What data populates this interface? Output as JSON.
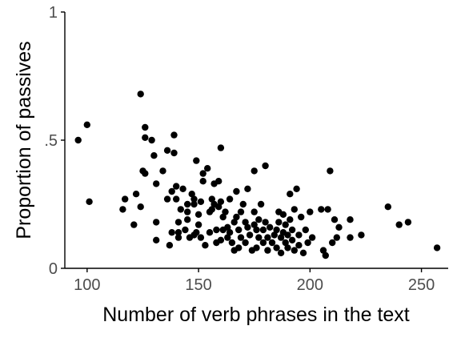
{
  "chart_data": {
    "type": "scatter",
    "title": "",
    "xlabel": "Number of verb phrases in the text",
    "ylabel": "Proportion of passives",
    "xlim": [
      90,
      262
    ],
    "ylim": [
      0,
      1
    ],
    "x_ticks": [
      {
        "value": 100,
        "label": "100"
      },
      {
        "value": 150,
        "label": "150"
      },
      {
        "value": 200,
        "label": "200"
      },
      {
        "value": 250,
        "label": "250"
      }
    ],
    "y_ticks": [
      {
        "value": 0,
        "label": "0"
      },
      {
        "value": 0.5,
        "label": ".5"
      },
      {
        "value": 1,
        "label": "1"
      }
    ],
    "grid": false,
    "legend": "none",
    "point_color": "#000000",
    "points": [
      [
        96,
        0.5
      ],
      [
        100,
        0.56
      ],
      [
        101,
        0.26
      ],
      [
        116,
        0.23
      ],
      [
        117,
        0.27
      ],
      [
        121,
        0.17
      ],
      [
        122,
        0.29
      ],
      [
        124,
        0.68
      ],
      [
        124,
        0.24
      ],
      [
        125,
        0.38
      ],
      [
        126,
        0.55
      ],
      [
        126,
        0.37
      ],
      [
        126,
        0.51
      ],
      [
        129,
        0.5
      ],
      [
        130,
        0.44
      ],
      [
        131,
        0.18
      ],
      [
        131,
        0.11
      ],
      [
        131,
        0.33
      ],
      [
        134,
        0.38
      ],
      [
        136,
        0.46
      ],
      [
        136,
        0.27
      ],
      [
        137,
        0.09
      ],
      [
        138,
        0.14
      ],
      [
        138,
        0.3
      ],
      [
        139,
        0.52
      ],
      [
        139,
        0.45
      ],
      [
        140,
        0.32
      ],
      [
        140,
        0.27
      ],
      [
        141,
        0.14
      ],
      [
        141,
        0.18
      ],
      [
        141,
        0.12
      ],
      [
        142,
        0.23
      ],
      [
        143,
        0.31
      ],
      [
        144,
        0.15
      ],
      [
        145,
        0.25
      ],
      [
        145,
        0.19
      ],
      [
        145,
        0.22
      ],
      [
        146,
        0.12
      ],
      [
        147,
        0.29
      ],
      [
        148,
        0.25
      ],
      [
        148,
        0.13
      ],
      [
        148,
        0.27
      ],
      [
        149,
        0.42
      ],
      [
        149,
        0.14
      ],
      [
        150,
        0.17
      ],
      [
        150,
        0.21
      ],
      [
        151,
        0.12
      ],
      [
        151,
        0.26
      ],
      [
        152,
        0.37
      ],
      [
        152,
        0.34
      ],
      [
        153,
        0.09
      ],
      [
        154,
        0.39
      ],
      [
        155,
        0.14
      ],
      [
        155,
        0.22
      ],
      [
        156,
        0.27
      ],
      [
        156,
        0.23
      ],
      [
        157,
        0.33
      ],
      [
        157,
        0.25
      ],
      [
        158,
        0.15
      ],
      [
        158,
        0.1
      ],
      [
        159,
        0.34
      ],
      [
        159,
        0.24
      ],
      [
        160,
        0.47
      ],
      [
        160,
        0.26
      ],
      [
        160,
        0.11
      ],
      [
        161,
        0.2
      ],
      [
        161,
        0.15
      ],
      [
        162,
        0.22
      ],
      [
        163,
        0.12
      ],
      [
        163,
        0.16
      ],
      [
        164,
        0.27
      ],
      [
        164,
        0.14
      ],
      [
        165,
        0.1
      ],
      [
        166,
        0.07
      ],
      [
        166,
        0.18
      ],
      [
        167,
        0.3
      ],
      [
        167,
        0.2
      ],
      [
        168,
        0.15
      ],
      [
        168,
        0.08
      ],
      [
        169,
        0.22
      ],
      [
        169,
        0.12
      ],
      [
        170,
        0.25
      ],
      [
        171,
        0.18
      ],
      [
        171,
        0.1
      ],
      [
        172,
        0.31
      ],
      [
        172,
        0.16
      ],
      [
        173,
        0.13
      ],
      [
        174,
        0.07
      ],
      [
        175,
        0.38
      ],
      [
        175,
        0.22
      ],
      [
        175,
        0.17
      ],
      [
        176,
        0.15
      ],
      [
        176,
        0.08
      ],
      [
        177,
        0.19
      ],
      [
        177,
        0.12
      ],
      [
        178,
        0.25
      ],
      [
        179,
        0.15
      ],
      [
        179,
        0.1
      ],
      [
        180,
        0.4
      ],
      [
        180,
        0.18
      ],
      [
        181,
        0.12
      ],
      [
        181,
        0.07
      ],
      [
        182,
        0.16
      ],
      [
        183,
        0.1
      ],
      [
        184,
        0.13
      ],
      [
        185,
        0.15
      ],
      [
        185,
        0.08
      ],
      [
        186,
        0.22
      ],
      [
        186,
        0.18
      ],
      [
        187,
        0.12
      ],
      [
        187,
        0.06
      ],
      [
        188,
        0.21
      ],
      [
        188,
        0.14
      ],
      [
        189,
        0.1
      ],
      [
        189,
        0.17
      ],
      [
        190,
        0.08
      ],
      [
        190,
        0.13
      ],
      [
        191,
        0.29
      ],
      [
        191,
        0.19
      ],
      [
        192,
        0.11
      ],
      [
        192,
        0.15
      ],
      [
        193,
        0.07
      ],
      [
        193,
        0.23
      ],
      [
        194,
        0.31
      ],
      [
        195,
        0.13
      ],
      [
        195,
        0.09
      ],
      [
        196,
        0.2
      ],
      [
        197,
        0.06
      ],
      [
        198,
        0.15
      ],
      [
        199,
        0.1
      ],
      [
        200,
        0.22
      ],
      [
        201,
        0.12
      ],
      [
        205,
        0.23
      ],
      [
        206,
        0.07
      ],
      [
        207,
        0.05
      ],
      [
        208,
        0.23
      ],
      [
        209,
        0.38
      ],
      [
        210,
        0.1
      ],
      [
        211,
        0.19
      ],
      [
        212,
        0.12
      ],
      [
        213,
        0.16
      ],
      [
        218,
        0.19
      ],
      [
        218,
        0.12
      ],
      [
        223,
        0.13
      ],
      [
        235,
        0.24
      ],
      [
        240,
        0.17
      ],
      [
        244,
        0.18
      ],
      [
        257,
        0.08
      ]
    ]
  }
}
